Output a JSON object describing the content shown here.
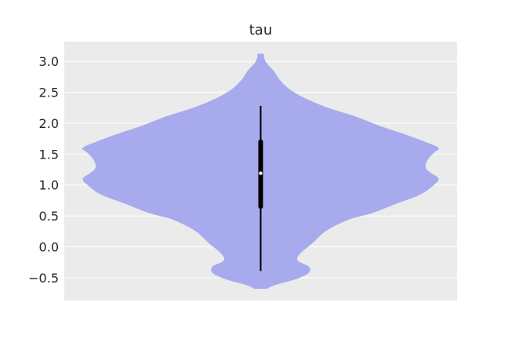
{
  "chart_data": {
    "type": "violin",
    "title": "tau",
    "xlabel": "",
    "ylabel": "",
    "ylim": [
      -0.87,
      3.32
    ],
    "yticks": [
      -0.5,
      0.0,
      0.5,
      1.0,
      1.5,
      2.0,
      2.5,
      3.0
    ],
    "ytick_labels": [
      "−0.5",
      "0.0",
      "0.5",
      "1.0",
      "1.5",
      "2.0",
      "2.5",
      "3.0"
    ],
    "grid": true,
    "violin": {
      "color": "#a8aaee",
      "min": -0.68,
      "max": 3.12,
      "median": 1.19,
      "q1": 0.65,
      "q3": 1.7,
      "whisker_low": -0.39,
      "whisker_high": 2.28,
      "profile": [
        {
          "y": -0.68,
          "w": 0.08
        },
        {
          "y": -0.62,
          "w": 0.18
        },
        {
          "y": -0.52,
          "w": 0.45
        },
        {
          "y": -0.42,
          "w": 0.6
        },
        {
          "y": -0.32,
          "w": 0.6
        },
        {
          "y": -0.22,
          "w": 0.46
        },
        {
          "y": -0.1,
          "w": 0.5
        },
        {
          "y": 0.05,
          "w": 0.64
        },
        {
          "y": 0.2,
          "w": 0.76
        },
        {
          "y": 0.32,
          "w": 0.9
        },
        {
          "y": 0.45,
          "w": 1.12
        },
        {
          "y": 0.55,
          "w": 1.4
        },
        {
          "y": 0.7,
          "w": 1.7
        },
        {
          "y": 0.85,
          "w": 2.0
        },
        {
          "y": 1.0,
          "w": 2.16
        },
        {
          "y": 1.1,
          "w": 2.22
        },
        {
          "y": 1.2,
          "w": 2.12
        },
        {
          "y": 1.28,
          "w": 2.06
        },
        {
          "y": 1.4,
          "w": 2.08
        },
        {
          "y": 1.52,
          "w": 2.16
        },
        {
          "y": 1.6,
          "w": 2.22
        },
        {
          "y": 1.7,
          "w": 2.05
        },
        {
          "y": 1.82,
          "w": 1.8
        },
        {
          "y": 1.95,
          "w": 1.5
        },
        {
          "y": 2.1,
          "w": 1.2
        },
        {
          "y": 2.25,
          "w": 0.84
        },
        {
          "y": 2.4,
          "w": 0.56
        },
        {
          "y": 2.55,
          "w": 0.36
        },
        {
          "y": 2.7,
          "w": 0.24
        },
        {
          "y": 2.85,
          "w": 0.16
        },
        {
          "y": 2.98,
          "w": 0.07
        },
        {
          "y": 3.08,
          "w": 0.04
        },
        {
          "y": 3.12,
          "w": 0.04
        }
      ]
    }
  }
}
